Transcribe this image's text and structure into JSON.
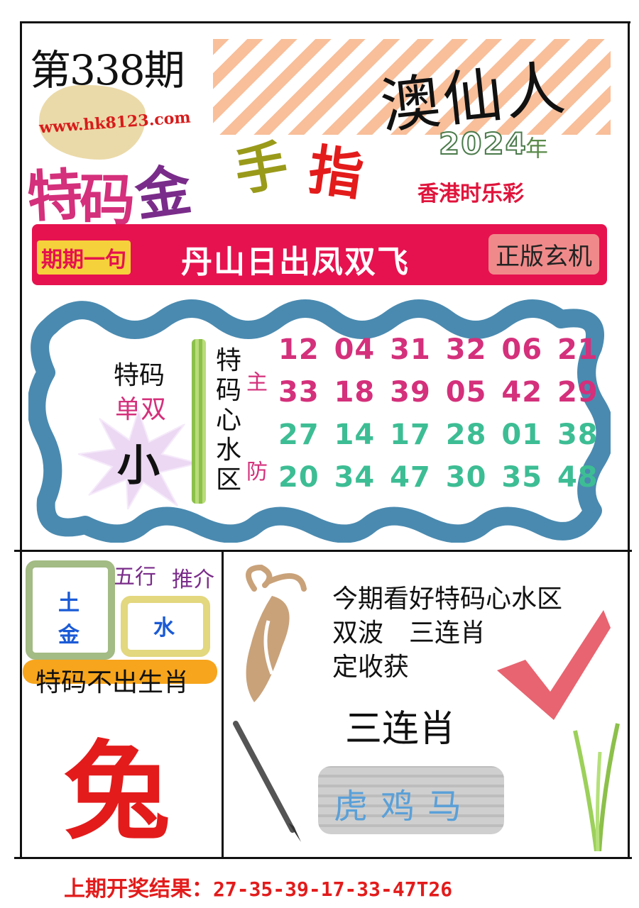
{
  "header": {
    "issue": "第338期",
    "url": "www.hk8123.com",
    "brand": "澳仙人",
    "year": "2024",
    "year_suffix": "年",
    "lottery": "香港时乐彩",
    "title_chars": [
      "特",
      "码",
      "金",
      "手",
      "指"
    ]
  },
  "banner": {
    "left_tag": "期期一句",
    "text": "丹山日出凤双飞",
    "right_tag": "正版玄机"
  },
  "main": {
    "special_label": "特码",
    "parity_label": "单双",
    "size_value": "小",
    "zone_chars": [
      "特",
      "码",
      "心",
      "水",
      "区"
    ],
    "main_label": "主",
    "defend_label": "防",
    "main_rows": [
      "12 04 31 32 06 21",
      "33 18 39 05 42 29"
    ],
    "defend_rows": [
      "27 14 17 28 01 38",
      "20 34 47 30 35 48"
    ]
  },
  "elements": {
    "title_a": "五行",
    "title_b": "推介",
    "box1": [
      "土",
      "金"
    ],
    "box2": "水",
    "no_zodiac_label": "特码不出生肖",
    "no_zodiac": "兔"
  },
  "right_panel": {
    "lines": [
      "今期看好特码心水区",
      "双波　三连肖",
      "定收获"
    ],
    "three_label": "三连肖",
    "zodiacs": "虎鸡马"
  },
  "footer": {
    "label": "上期开奖结果：",
    "value": "27-35-39-17-33-47T26"
  },
  "colors": {
    "red": "#e31b1b",
    "pink": "#d4307b",
    "teal": "#3dbd94",
    "banner": "#e6124f",
    "wave": "#4a8ab0"
  }
}
